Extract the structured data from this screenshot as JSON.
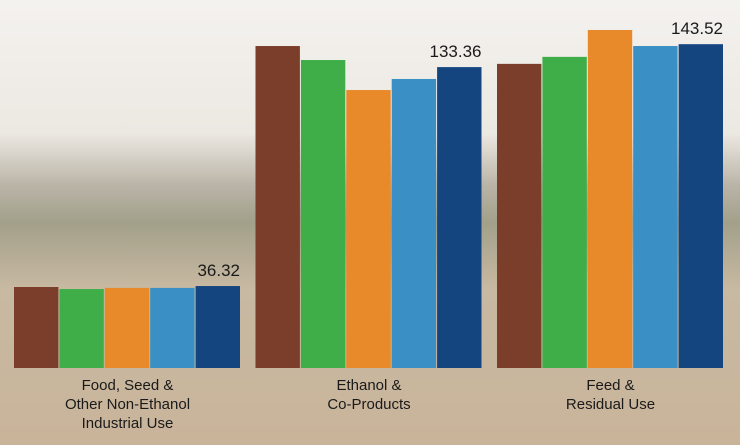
{
  "chart_data": {
    "type": "bar",
    "categories": [
      "Food, Seed &\nOther Non-Ethanol\nIndustrial Use",
      "Ethanol &\nCo-Products",
      "Feed &\nResidual Use"
    ],
    "series": [
      {
        "color": "#7a3e2a",
        "values": [
          35.9,
          142.7,
          134.8
        ]
      },
      {
        "color": "#3fae49",
        "values": [
          35.0,
          136.5,
          137.9
        ]
      },
      {
        "color": "#e8892a",
        "values": [
          35.5,
          123.2,
          149.8
        ]
      },
      {
        "color": "#3a8fc4",
        "values": [
          35.5,
          128.1,
          142.7
        ]
      },
      {
        "color": "#14457e",
        "values": [
          36.32,
          133.36,
          143.52
        ],
        "data_labels": true
      }
    ],
    "ylim": [
      0,
      160
    ]
  }
}
